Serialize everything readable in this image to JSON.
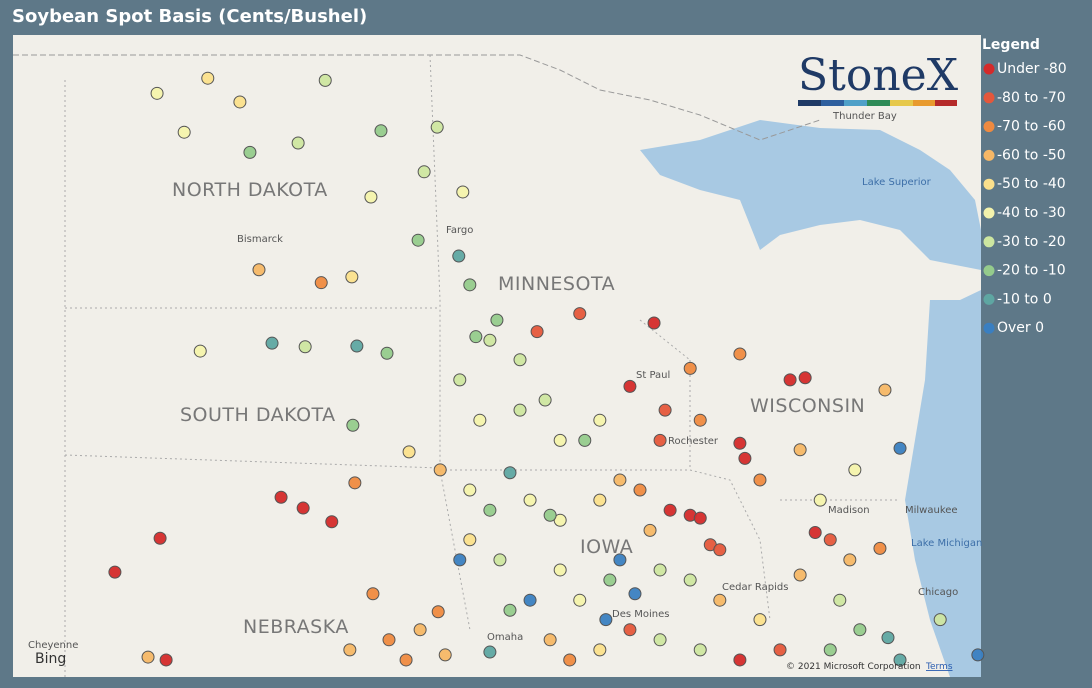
{
  "title": "Soybean Spot Basis (Cents/Bushel)",
  "legend": {
    "title": "Legend",
    "items": [
      {
        "label": "Under -80",
        "color": "#d42a2a"
      },
      {
        "label": "-80 to -70",
        "color": "#e5573b"
      },
      {
        "label": "-70 to -60",
        "color": "#ef8a40"
      },
      {
        "label": "-60 to -50",
        "color": "#f6b766"
      },
      {
        "label": "-50 to -40",
        "color": "#fbe08c"
      },
      {
        "label": "-40 to -30",
        "color": "#f4f3ac"
      },
      {
        "label": "-30 to -20",
        "color": "#cde6a0"
      },
      {
        "label": "-20 to -10",
        "color": "#95cb8c"
      },
      {
        "label": "-10 to 0",
        "color": "#5ea6a2"
      },
      {
        "label": "Over 0",
        "color": "#3a7fc1"
      }
    ]
  },
  "map": {
    "states": [
      "NORTH DAKOTA",
      "SOUTH DAKOTA",
      "MINNESOTA",
      "WISCONSIN",
      "IOWA",
      "NEBRASKA"
    ],
    "cities": [
      "Bismarck",
      "Fargo",
      "St Paul",
      "Rochester",
      "Madison",
      "Milwaukee",
      "Thunder Bay",
      "Chicago",
      "Cedar Rapids",
      "Omaha",
      "Cheyenne",
      "Des Moines"
    ],
    "lakes": [
      "Lake Superior",
      "Lake Michigan"
    ],
    "logo": "StoneX",
    "provider": "Bing",
    "copyright": "© 2021 Microsoft Corporation",
    "terms": "Terms",
    "points": [
      [
        -101.78,
        49.02,
        4
      ],
      [
        -102.79,
        48.81,
        5
      ],
      [
        -101.14,
        48.69,
        4
      ],
      [
        -99.44,
        48.99,
        6
      ],
      [
        -102.25,
        48.27,
        5
      ],
      [
        -100.94,
        47.99,
        7
      ],
      [
        -99.98,
        48.12,
        6
      ],
      [
        -98.33,
        48.29,
        7
      ],
      [
        -97.21,
        48.34,
        6
      ],
      [
        -96.7,
        47.44,
        5
      ],
      [
        -98.53,
        47.37,
        5
      ],
      [
        -97.47,
        47.72,
        6
      ],
      [
        -97.59,
        46.77,
        7
      ],
      [
        -96.78,
        46.55,
        8
      ],
      [
        -100.76,
        46.36,
        3
      ],
      [
        -99.52,
        46.18,
        2
      ],
      [
        -98.91,
        46.26,
        4
      ],
      [
        -100.5,
        45.34,
        8
      ],
      [
        -98.81,
        45.3,
        8
      ],
      [
        -99.84,
        45.29,
        6
      ],
      [
        -101.93,
        45.23,
        5
      ],
      [
        -98.21,
        45.2,
        7
      ],
      [
        -96.56,
        46.15,
        7
      ],
      [
        -96.02,
        45.66,
        7
      ],
      [
        -96.44,
        45.43,
        7
      ],
      [
        -98.89,
        44.2,
        7
      ],
      [
        -100.32,
        43.2,
        0
      ],
      [
        -99.88,
        43.05,
        0
      ],
      [
        -99.31,
        42.86,
        0
      ],
      [
        -102.73,
        42.63,
        0
      ],
      [
        -103.63,
        42.16,
        0
      ],
      [
        -102.61,
        40.94,
        0
      ],
      [
        -102.97,
        40.98,
        3
      ],
      [
        -97.77,
        43.83,
        4
      ],
      [
        -98.85,
        43.4,
        2
      ],
      [
        -98.49,
        41.86,
        2
      ],
      [
        -98.17,
        41.22,
        2
      ],
      [
        -97.19,
        41.61,
        2
      ],
      [
        -96.76,
        42.33,
        9
      ],
      [
        -96.16,
        41.05,
        8
      ],
      [
        -97.83,
        40.94,
        2
      ],
      [
        -97.05,
        41.01,
        3
      ],
      [
        -97.55,
        41.36,
        3
      ],
      [
        -94.37,
        45.75,
        1
      ],
      [
        -92.89,
        45.62,
        0
      ],
      [
        -95.22,
        45.5,
        1
      ],
      [
        -96.16,
        45.38,
        6
      ],
      [
        -95.56,
        45.11,
        6
      ],
      [
        -93.37,
        44.74,
        0
      ],
      [
        -92.17,
        44.99,
        2
      ],
      [
        -91.18,
        45.19,
        2
      ],
      [
        -90.18,
        44.83,
        0
      ],
      [
        -89.88,
        44.86,
        0
      ],
      [
        -88.29,
        44.69,
        3
      ],
      [
        -87.99,
        43.88,
        9
      ],
      [
        -88.89,
        43.58,
        5
      ],
      [
        -91.18,
        43.95,
        0
      ],
      [
        -91.08,
        43.74,
        0
      ],
      [
        -91.97,
        44.27,
        2
      ],
      [
        -92.67,
        44.41,
        1
      ],
      [
        -93.97,
        44.27,
        5
      ],
      [
        -94.76,
        43.99,
        5
      ],
      [
        -95.56,
        44.41,
        6
      ],
      [
        -96.36,
        44.27,
        5
      ],
      [
        -94.27,
        43.99,
        7
      ],
      [
        -95.06,
        44.55,
        6
      ],
      [
        -96.76,
        44.83,
        6
      ],
      [
        -97.15,
        43.58,
        3
      ],
      [
        -96.56,
        43.3,
        5
      ],
      [
        -95.76,
        43.54,
        8
      ],
      [
        -96.16,
        43.02,
        7
      ],
      [
        -95.36,
        43.16,
        5
      ],
      [
        -94.76,
        42.88,
        5
      ],
      [
        -94.96,
        42.95,
        7
      ],
      [
        -93.97,
        43.16,
        4
      ],
      [
        -93.57,
        43.44,
        3
      ],
      [
        -93.17,
        43.3,
        2
      ],
      [
        -92.57,
        43.02,
        0
      ],
      [
        -92.17,
        42.95,
        0
      ],
      [
        -91.97,
        42.91,
        0
      ],
      [
        -91.77,
        42.54,
        1
      ],
      [
        -91.58,
        42.47,
        1
      ],
      [
        -92.97,
        42.74,
        3
      ],
      [
        -93.57,
        42.33,
        9
      ],
      [
        -93.77,
        42.05,
        7
      ],
      [
        -93.27,
        41.86,
        9
      ],
      [
        -93.37,
        41.36,
        1
      ],
      [
        -93.85,
        41.5,
        9
      ],
      [
        -94.37,
        41.77,
        5
      ],
      [
        -95.36,
        41.77,
        9
      ],
      [
        -95.76,
        41.63,
        7
      ],
      [
        -94.76,
        42.19,
        5
      ],
      [
        -95.96,
        42.33,
        6
      ],
      [
        -96.56,
        42.61,
        4
      ],
      [
        -92.77,
        42.19,
        6
      ],
      [
        -92.17,
        42.05,
        6
      ],
      [
        -91.58,
        41.77,
        3
      ],
      [
        -90.78,
        41.5,
        4
      ],
      [
        -89.98,
        42.12,
        3
      ],
      [
        -89.38,
        42.61,
        1
      ],
      [
        -89.68,
        42.71,
        0
      ],
      [
        -88.99,
        42.33,
        3
      ],
      [
        -88.39,
        42.49,
        2
      ],
      [
        -89.19,
        41.77,
        6
      ],
      [
        -88.79,
        41.36,
        7
      ],
      [
        -89.38,
        41.08,
        7
      ],
      [
        -88.23,
        41.25,
        8
      ],
      [
        -87.19,
        41.5,
        6
      ],
      [
        -87.99,
        40.94,
        8
      ],
      [
        -86.44,
        41.01,
        9
      ],
      [
        -90.38,
        41.08,
        1
      ],
      [
        -91.18,
        40.94,
        0
      ],
      [
        -91.97,
        41.08,
        6
      ],
      [
        -92.77,
        41.22,
        6
      ],
      [
        -93.97,
        41.08,
        4
      ],
      [
        -94.96,
        41.22,
        3
      ],
      [
        -94.57,
        40.94,
        2
      ],
      [
        -98.95,
        41.08,
        3
      ],
      [
        -90.78,
        43.44,
        2
      ],
      [
        -89.98,
        43.86,
        3
      ],
      [
        -89.58,
        43.16,
        5
      ],
      [
        -92.77,
        43.99,
        1
      ]
    ]
  }
}
